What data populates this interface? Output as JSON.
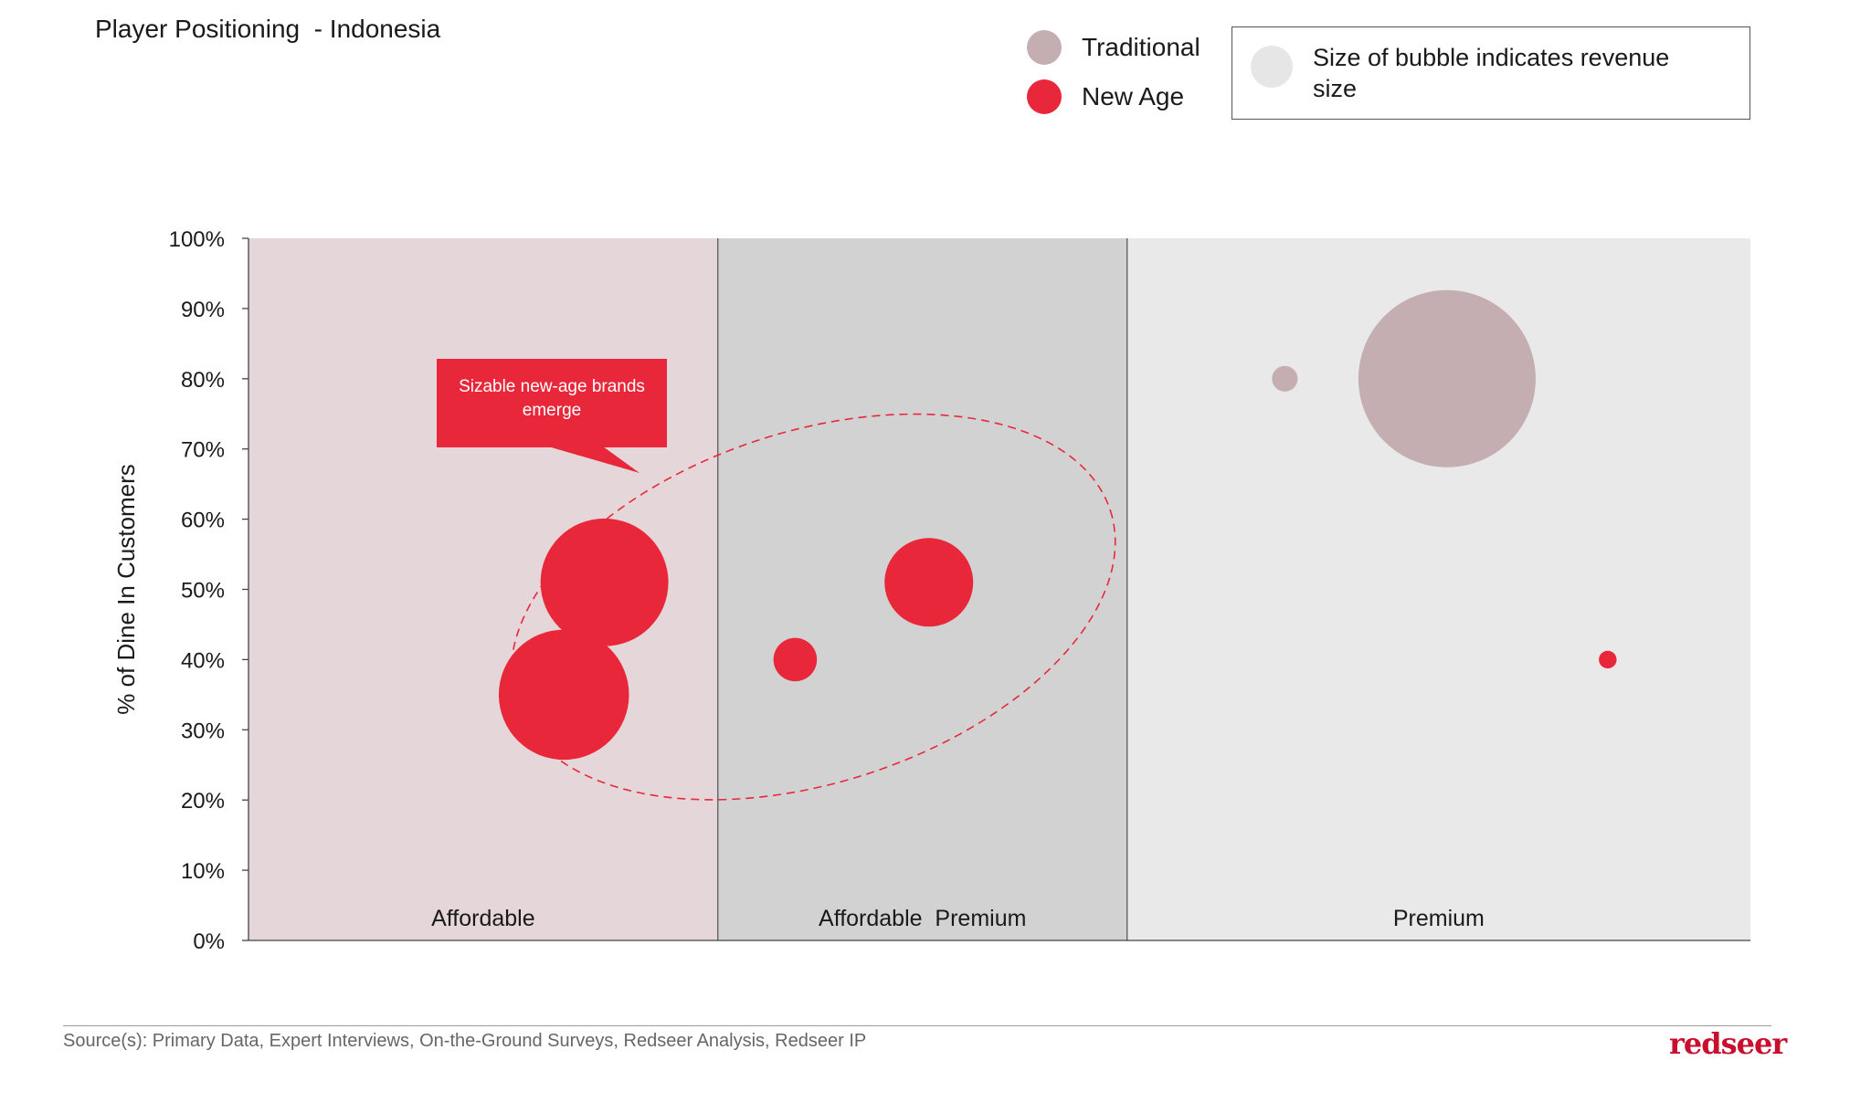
{
  "title": "Player Positioning  - Indonesia",
  "legend": {
    "items": [
      {
        "label": "Traditional",
        "color": "#c4aeb1"
      },
      {
        "label": "New Age",
        "color": "#e8283a"
      }
    ],
    "note": "Size of bubble indicates revenue size",
    "note_color": "#e6e6e6"
  },
  "callout": {
    "text": "Sizable new-age brands emerge",
    "color": "#e8283a"
  },
  "source": "Source(s): Primary Data, Expert Interviews, On-the-Ground Surveys, Redseer Analysis, Redseer IP",
  "brand": {
    "text": "redseer",
    "color": "#c8102e"
  },
  "chart_data": {
    "type": "scatter",
    "title": "Player Positioning  - Indonesia",
    "ylabel": "% of Dine In Customers",
    "xlabel": "",
    "ylim": [
      0,
      100
    ],
    "y_ticks": [
      "0%",
      "10%",
      "20%",
      "30%",
      "40%",
      "50%",
      "60%",
      "70%",
      "80%",
      "90%",
      "100%"
    ],
    "y_tick_values": [
      0,
      10,
      20,
      30,
      40,
      50,
      60,
      70,
      80,
      90,
      100
    ],
    "grid": false,
    "legend_position": "top-right",
    "x_segments": [
      {
        "label": "Affordable",
        "from": 0,
        "to": 31.25,
        "color": "#e5d6da"
      },
      {
        "label": "Affordable  Premium",
        "from": 31.25,
        "to": 58.5,
        "color": "#d2d2d2"
      },
      {
        "label": "Premium",
        "from": 58.5,
        "to": 100,
        "color": "#e9e9e9"
      }
    ],
    "series": [
      {
        "name": "Traditional",
        "color": "#c4aeb1",
        "points": [
          {
            "x": 69.0,
            "y": 80,
            "size": 2.1
          },
          {
            "x": 79.8,
            "y": 80,
            "size": 100
          }
        ]
      },
      {
        "name": "New Age",
        "color": "#e8283a",
        "points": [
          {
            "x": 23.7,
            "y": 51,
            "size": 52
          },
          {
            "x": 21.0,
            "y": 35,
            "size": 54
          },
          {
            "x": 36.4,
            "y": 40,
            "size": 6
          },
          {
            "x": 45.3,
            "y": 51,
            "size": 25
          },
          {
            "x": 90.5,
            "y": 40,
            "size": 1
          }
        ]
      }
    ],
    "highlight_ellipse": {
      "cx": 37.6,
      "cy": 47.5,
      "rx_pct": 20.8,
      "ry_pct": 25,
      "rotation": -18
    }
  }
}
